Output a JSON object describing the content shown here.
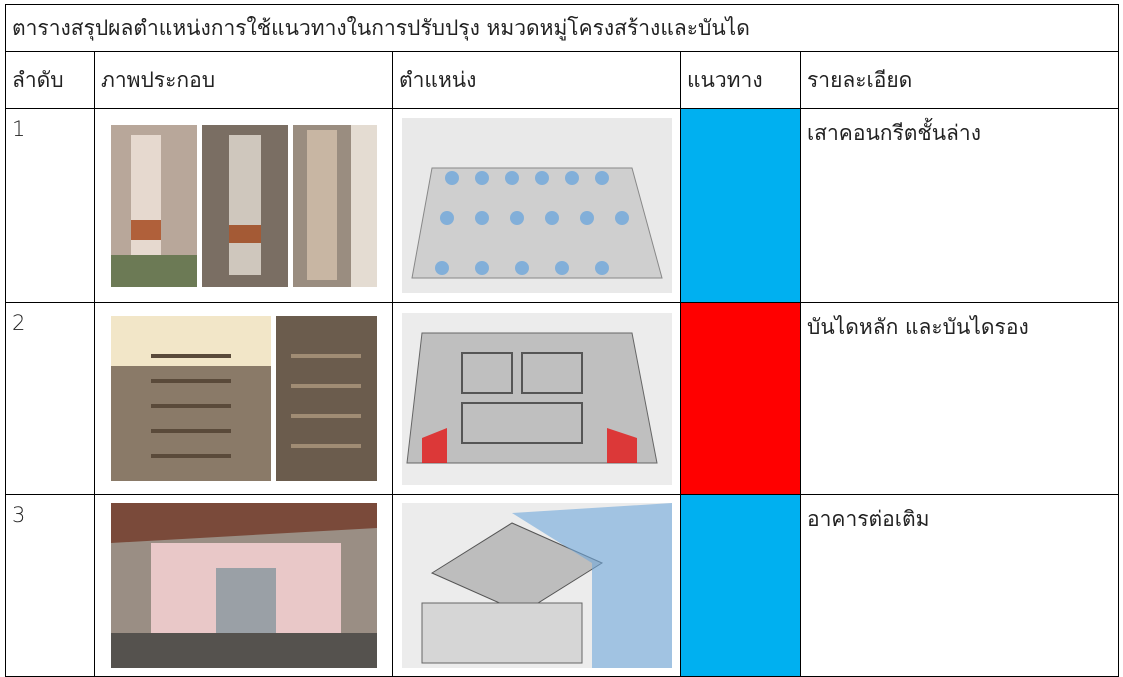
{
  "table": {
    "title": "ตารางสรุปผลตำแหน่งการใช้แนวทางในการปรับปรุง หมวดหมู่โครงสร้างและบันได",
    "header": [
      "ลำดับ",
      "ภาพประกอบ",
      "ตำแหน่ง",
      "แนวทาง",
      "รายละเอียด"
    ],
    "rows": [
      {
        "no": 1,
        "color": "#00b0f0",
        "detail": "เสาคอนกรีตชั้นล่าง"
      },
      {
        "no": 2,
        "color": "#ff0000",
        "detail": "บันไดหลัก และบันไดรอง"
      },
      {
        "no": 3,
        "color": "#00b0f0",
        "detail": "อาคารต่อเติม"
      }
    ]
  }
}
